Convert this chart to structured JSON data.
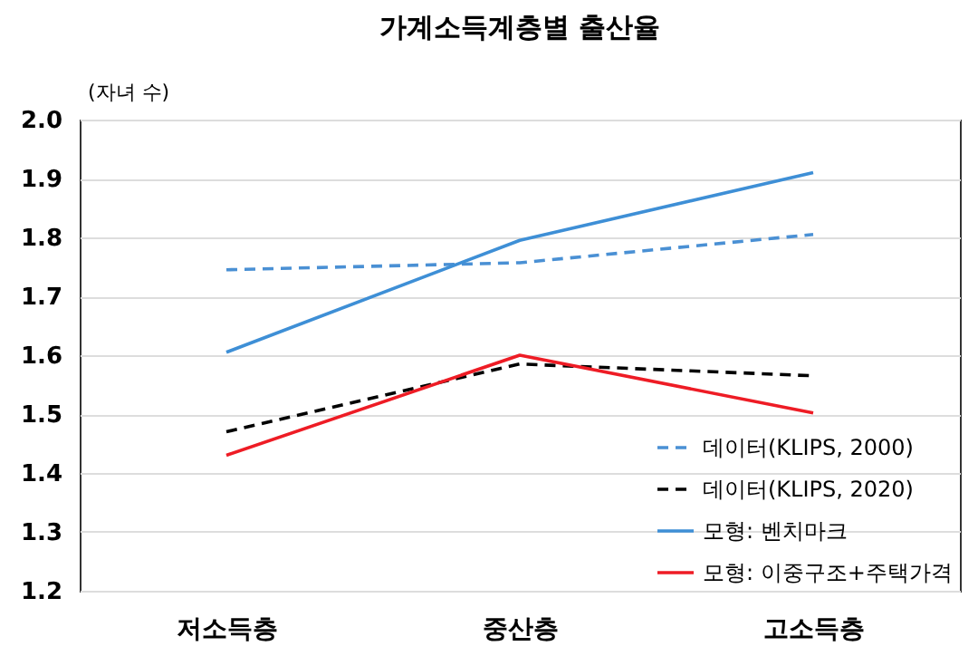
{
  "chart_data": {
    "type": "line",
    "title": "가계소득계층별 출산율",
    "ylabel": "(자녀 수)",
    "categories": [
      "저소득층",
      "중산층",
      "고소득층"
    ],
    "series": [
      {
        "name": "데이터(KLIPS, 2000)",
        "color": "#4a90d4",
        "line_style": "dashed",
        "values": [
          1.745,
          1.757,
          1.805
        ]
      },
      {
        "name": "데이터(KLIPS, 2020)",
        "color": "#000000",
        "line_style": "dashed",
        "values": [
          1.47,
          1.585,
          1.565
        ]
      },
      {
        "name": "모형: 벤치마크",
        "color": "#3e8fd6",
        "line_style": "solid",
        "values": [
          1.605,
          1.795,
          1.91
        ]
      },
      {
        "name": "모형: 이중구조+주택가격",
        "color": "#ee1c25",
        "line_style": "solid",
        "values": [
          1.43,
          1.6,
          1.502
        ]
      }
    ],
    "ylim": [
      1.2,
      2.0
    ],
    "yticks": [
      1.2,
      1.3,
      1.4,
      1.5,
      1.6,
      1.7,
      1.8,
      1.9,
      {
        "value": 2.0,
        "label": "2.0"
      }
    ],
    "grid": "y",
    "legend": "bottom right",
    "marker": "none"
  }
}
